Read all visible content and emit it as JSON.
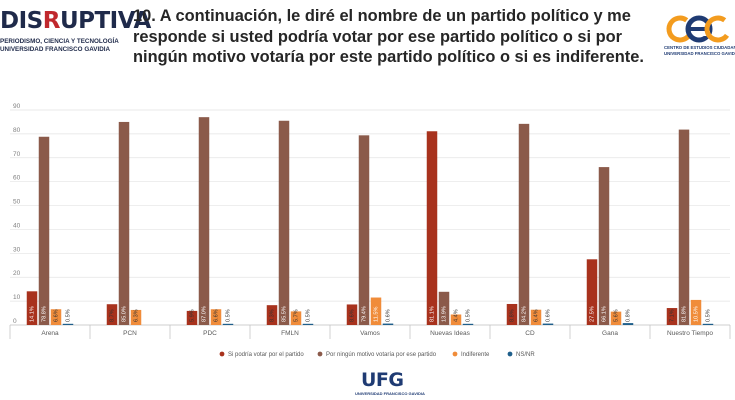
{
  "header": {
    "title": "10. A continuación, le diré el nombre de un partido político y me responde si usted podría votar por ese partido político o si por ningún motivo votaría por este partido político o si es indiferente.",
    "logo_left": {
      "brand_start": "DIS",
      "brand_accent": "R",
      "brand_end": "UPTIVA",
      "tagline_1": "PERIODISMO, CIENCIA Y TECNOLOGÍA",
      "tagline_2": "UNIVERSIDAD FRANCISCO GAVIDIA"
    },
    "logo_right": {
      "mark": "cec",
      "sub_1": "CENTRO DE ESTUDIOS CIUDADANOS",
      "sub_2": "UNIVERSIDAD FRANCISCO GAVIDIA"
    }
  },
  "footer": {
    "logo": "UFG",
    "logo_sub": "UNIVERSIDAD FRANCISCO GAVIDIA"
  },
  "colors": {
    "title": "#262626",
    "brand_navy": "#1f2a4a",
    "brand_red": "#c0282d",
    "cec_orange": "#f39c1f",
    "cec_blue": "#1f3b73",
    "grid": "#d9d9d9",
    "axis_text": "#595959"
  },
  "chart_data": {
    "type": "bar",
    "title": "",
    "xlabel": "",
    "ylabel": "",
    "ylim": [
      0,
      90
    ],
    "yticks": [
      0,
      10,
      20,
      30,
      40,
      50,
      60,
      70,
      80,
      90
    ],
    "grid": true,
    "legend_position": "bottom",
    "categories": [
      "Arena",
      "PCN",
      "PDC",
      "FMLN",
      "Vamos",
      "Nuevas Ideas",
      "CD",
      "Gana",
      "Nuestro Tiempo"
    ],
    "series": [
      {
        "name": "Si podría votar por el partido",
        "color": "#a8321d",
        "values": [
          14.1,
          8.7,
          5.9,
          8.3,
          8.6,
          81.1,
          8.8,
          27.5,
          7.1
        ],
        "labels": [
          "14.1%",
          "8.7%",
          "5.9%",
          "8.3%",
          "8.6%",
          "81.1%",
          "8.8%",
          "27.5%",
          "7.1%"
        ]
      },
      {
        "name": "Por ningún motivo votaría por ese partido",
        "color": "#8b5a4a",
        "values": [
          78.8,
          85.0,
          87.0,
          85.5,
          79.4,
          13.9,
          84.2,
          66.1,
          81.8
        ],
        "labels": [
          "78.8%",
          "85.0%",
          "87.0%",
          "85.5%",
          "79.4%",
          "13.9%",
          "84.2%",
          "66.1%",
          "81.8%"
        ]
      },
      {
        "name": "Indiferente",
        "color": "#f08c3a",
        "values": [
          6.6,
          6.3,
          6.6,
          5.7,
          11.5,
          4.4,
          6.4,
          5.6,
          10.5
        ],
        "labels": [
          "6.6%",
          "6.3%",
          "6.6%",
          "5.7%",
          "11.5%",
          "4.4%",
          "6.4%",
          "5.6%",
          "10.5%"
        ]
      },
      {
        "name": "NS/NR",
        "color": "#1f5f8b",
        "values": [
          0.5,
          0.0,
          0.5,
          0.5,
          0.6,
          0.5,
          0.6,
          0.8,
          0.5
        ],
        "labels": [
          "0.5%",
          "",
          "0.5%",
          "0.5%",
          "0.6%",
          "0.5%",
          "0.6%",
          "0.8%",
          "0.5%"
        ]
      }
    ]
  }
}
